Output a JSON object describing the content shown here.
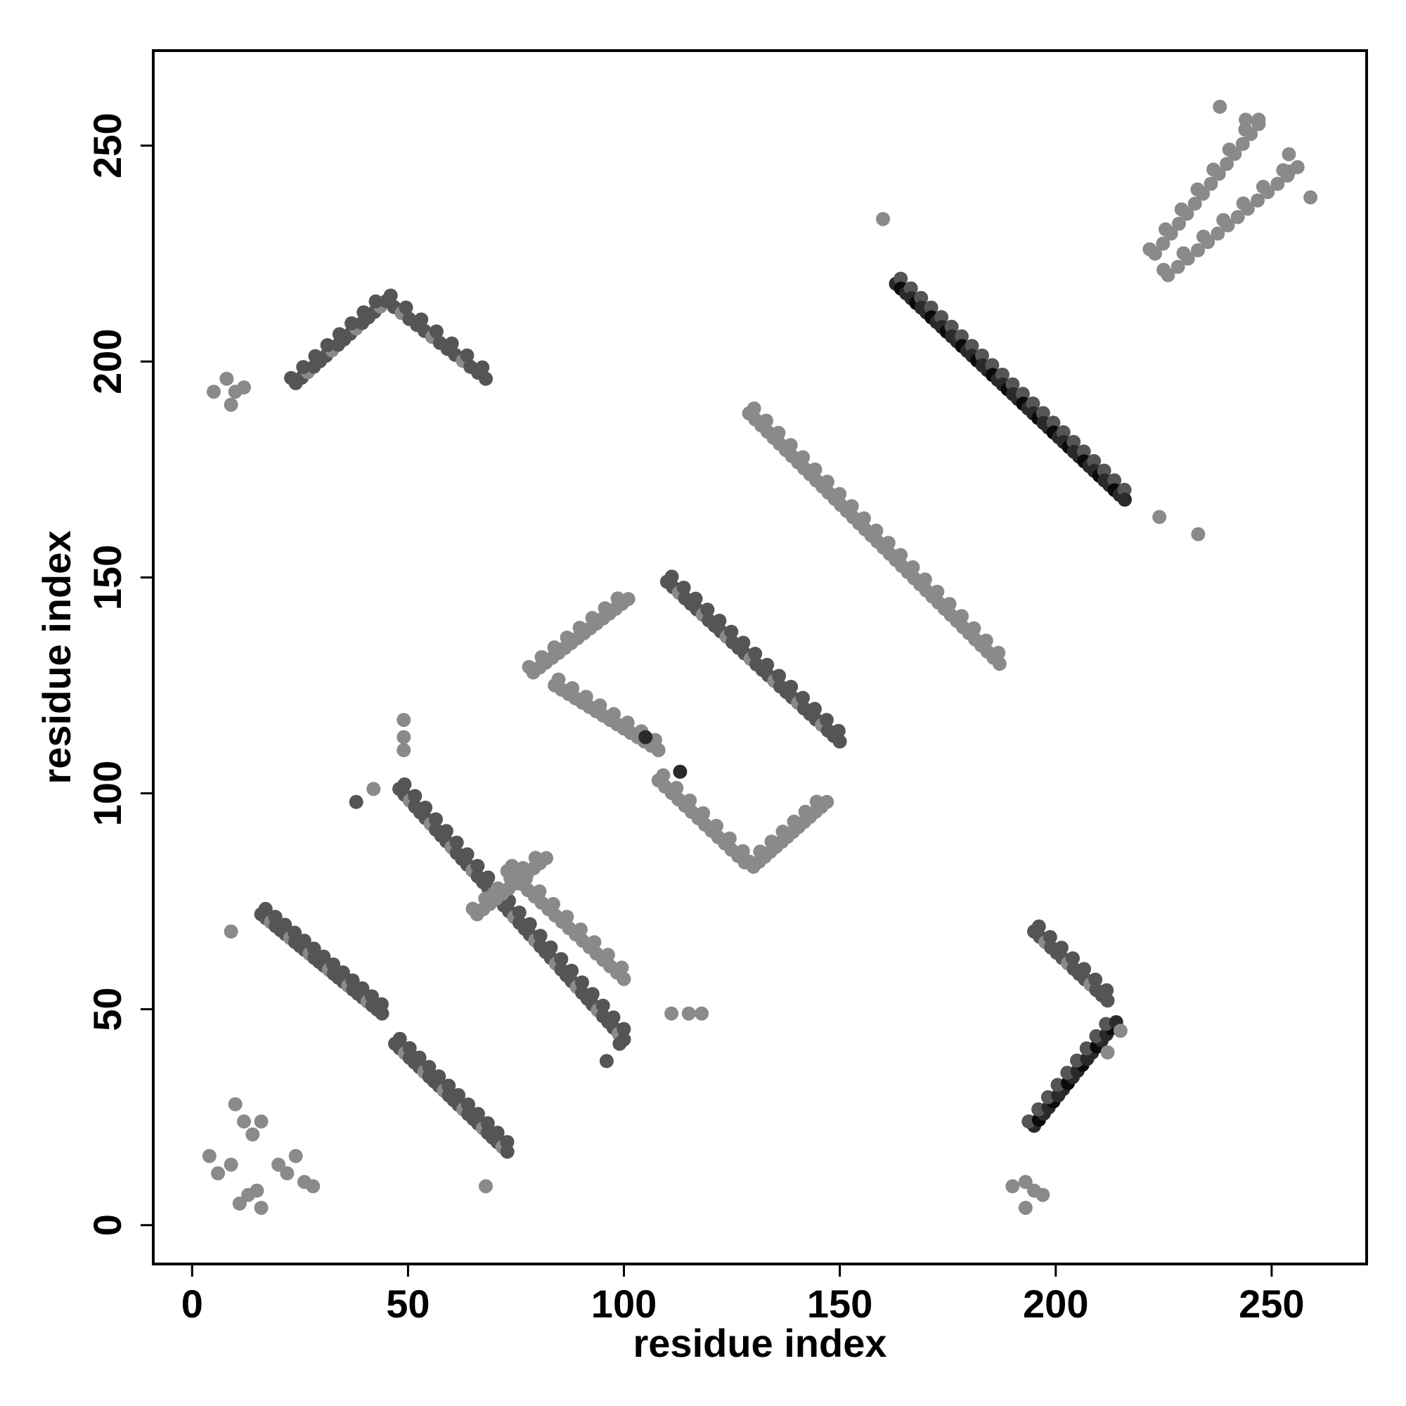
{
  "chart_data": {
    "type": "scatter",
    "title": "",
    "xlabel": "residue index",
    "ylabel": "residue index",
    "xlim": [
      -9,
      272
    ],
    "ylim": [
      -9,
      272
    ],
    "x_ticks": [
      "0",
      "50",
      "100",
      "150",
      "200",
      "250"
    ],
    "y_ticks": [
      "0",
      "50",
      "100",
      "150",
      "200",
      "250"
    ],
    "grid": false,
    "legend": "none",
    "colors": {
      "light": "#8a8a8a",
      "medium": "#555555",
      "dark": "#2a2a2a",
      "darkest": "#0a0a0a",
      "frame": "#000000"
    },
    "bands": [
      {
        "from": [
          16,
          72
        ],
        "to": [
          44,
          49
        ],
        "shade": "medium",
        "count": 26
      },
      {
        "from": [
          47,
          42
        ],
        "to": [
          73,
          17
        ],
        "shade": "medium",
        "count": 24
      },
      {
        "from": [
          48,
          101
        ],
        "to": [
          100,
          43
        ],
        "shade": "medium",
        "count": 44
      },
      {
        "from": [
          73,
          82
        ],
        "to": [
          100,
          57
        ],
        "shade": "light",
        "count": 18
      },
      {
        "from": [
          66,
          72
        ],
        "to": [
          82,
          85
        ],
        "shade": "light",
        "count": 12
      },
      {
        "from": [
          79,
          128
        ],
        "to": [
          101,
          145
        ],
        "shade": "light",
        "count": 16
      },
      {
        "from": [
          84,
          125
        ],
        "to": [
          108,
          110
        ],
        "shade": "light",
        "count": 16
      },
      {
        "from": [
          110,
          149
        ],
        "to": [
          150,
          112
        ],
        "shade": "medium",
        "count": 30
      },
      {
        "from": [
          108,
          103
        ],
        "to": [
          128,
          84
        ],
        "shade": "light",
        "count": 14
      },
      {
        "from": [
          130,
          83
        ],
        "to": [
          147,
          98
        ],
        "shade": "light",
        "count": 14
      },
      {
        "from": [
          129,
          188
        ],
        "to": [
          187,
          130
        ],
        "shade": "light",
        "count": 42
      },
      {
        "from": [
          163,
          218
        ],
        "to": [
          216,
          168
        ],
        "shade": "dark",
        "count": 46
      },
      {
        "from": [
          195,
          68
        ],
        "to": [
          212,
          52
        ],
        "shade": "medium",
        "count": 14
      },
      {
        "from": [
          195,
          23
        ],
        "to": [
          214,
          47
        ],
        "shade": "dark",
        "count": 18
      },
      {
        "from": [
          24,
          195
        ],
        "to": [
          45,
          214
        ],
        "shade": "medium",
        "count": 16
      },
      {
        "from": [
          45,
          214
        ],
        "to": [
          68,
          196
        ],
        "shade": "medium",
        "count": 14
      },
      {
        "from": [
          223,
          225
        ],
        "to": [
          247,
          255
        ],
        "shade": "light",
        "count": 14
      },
      {
        "from": [
          226,
          220
        ],
        "to": [
          256,
          245
        ],
        "shade": "light",
        "count": 14
      }
    ],
    "points": [
      {
        "x": 4,
        "y": 16,
        "shade": "light"
      },
      {
        "x": 6,
        "y": 12,
        "shade": "light"
      },
      {
        "x": 9,
        "y": 14,
        "shade": "light"
      },
      {
        "x": 10,
        "y": 28,
        "shade": "light"
      },
      {
        "x": 12,
        "y": 24,
        "shade": "light"
      },
      {
        "x": 14,
        "y": 21,
        "shade": "light"
      },
      {
        "x": 16,
        "y": 24,
        "shade": "light"
      },
      {
        "x": 11,
        "y": 5,
        "shade": "light"
      },
      {
        "x": 13,
        "y": 7,
        "shade": "light"
      },
      {
        "x": 16,
        "y": 4,
        "shade": "light"
      },
      {
        "x": 15,
        "y": 8,
        "shade": "light"
      },
      {
        "x": 20,
        "y": 14,
        "shade": "light"
      },
      {
        "x": 22,
        "y": 12,
        "shade": "light"
      },
      {
        "x": 24,
        "y": 16,
        "shade": "light"
      },
      {
        "x": 26,
        "y": 10,
        "shade": "light"
      },
      {
        "x": 28,
        "y": 9,
        "shade": "light"
      },
      {
        "x": 9,
        "y": 68,
        "shade": "light"
      },
      {
        "x": 68,
        "y": 9,
        "shade": "light"
      },
      {
        "x": 5,
        "y": 193,
        "shade": "light"
      },
      {
        "x": 8,
        "y": 196,
        "shade": "light"
      },
      {
        "x": 10,
        "y": 193,
        "shade": "light"
      },
      {
        "x": 9,
        "y": 190,
        "shade": "light"
      },
      {
        "x": 12,
        "y": 194,
        "shade": "light"
      },
      {
        "x": 49,
        "y": 117,
        "shade": "light"
      },
      {
        "x": 49,
        "y": 113,
        "shade": "light"
      },
      {
        "x": 49,
        "y": 110,
        "shade": "light"
      },
      {
        "x": 38,
        "y": 98,
        "shade": "medium"
      },
      {
        "x": 42,
        "y": 101,
        "shade": "light"
      },
      {
        "x": 96,
        "y": 38,
        "shade": "medium"
      },
      {
        "x": 99,
        "y": 42,
        "shade": "medium"
      },
      {
        "x": 111,
        "y": 49,
        "shade": "light"
      },
      {
        "x": 115,
        "y": 49,
        "shade": "light"
      },
      {
        "x": 118,
        "y": 49,
        "shade": "light"
      },
      {
        "x": 113,
        "y": 105,
        "shade": "dark"
      },
      {
        "x": 105,
        "y": 113,
        "shade": "dark"
      },
      {
        "x": 160,
        "y": 233,
        "shade": "light"
      },
      {
        "x": 233,
        "y": 160,
        "shade": "light"
      },
      {
        "x": 224,
        "y": 164,
        "shade": "light"
      },
      {
        "x": 193,
        "y": 4,
        "shade": "light"
      },
      {
        "x": 193,
        "y": 10,
        "shade": "light"
      },
      {
        "x": 195,
        "y": 8,
        "shade": "light"
      },
      {
        "x": 190,
        "y": 9,
        "shade": "light"
      },
      {
        "x": 197,
        "y": 7,
        "shade": "light"
      },
      {
        "x": 238,
        "y": 259,
        "shade": "light"
      },
      {
        "x": 244,
        "y": 256,
        "shade": "light"
      },
      {
        "x": 247,
        "y": 256,
        "shade": "light"
      },
      {
        "x": 254,
        "y": 248,
        "shade": "light"
      },
      {
        "x": 254,
        "y": 244,
        "shade": "light"
      },
      {
        "x": 259,
        "y": 238,
        "shade": "light"
      },
      {
        "x": 215,
        "y": 45,
        "shade": "light"
      },
      {
        "x": 212,
        "y": 40,
        "shade": "light"
      }
    ]
  }
}
